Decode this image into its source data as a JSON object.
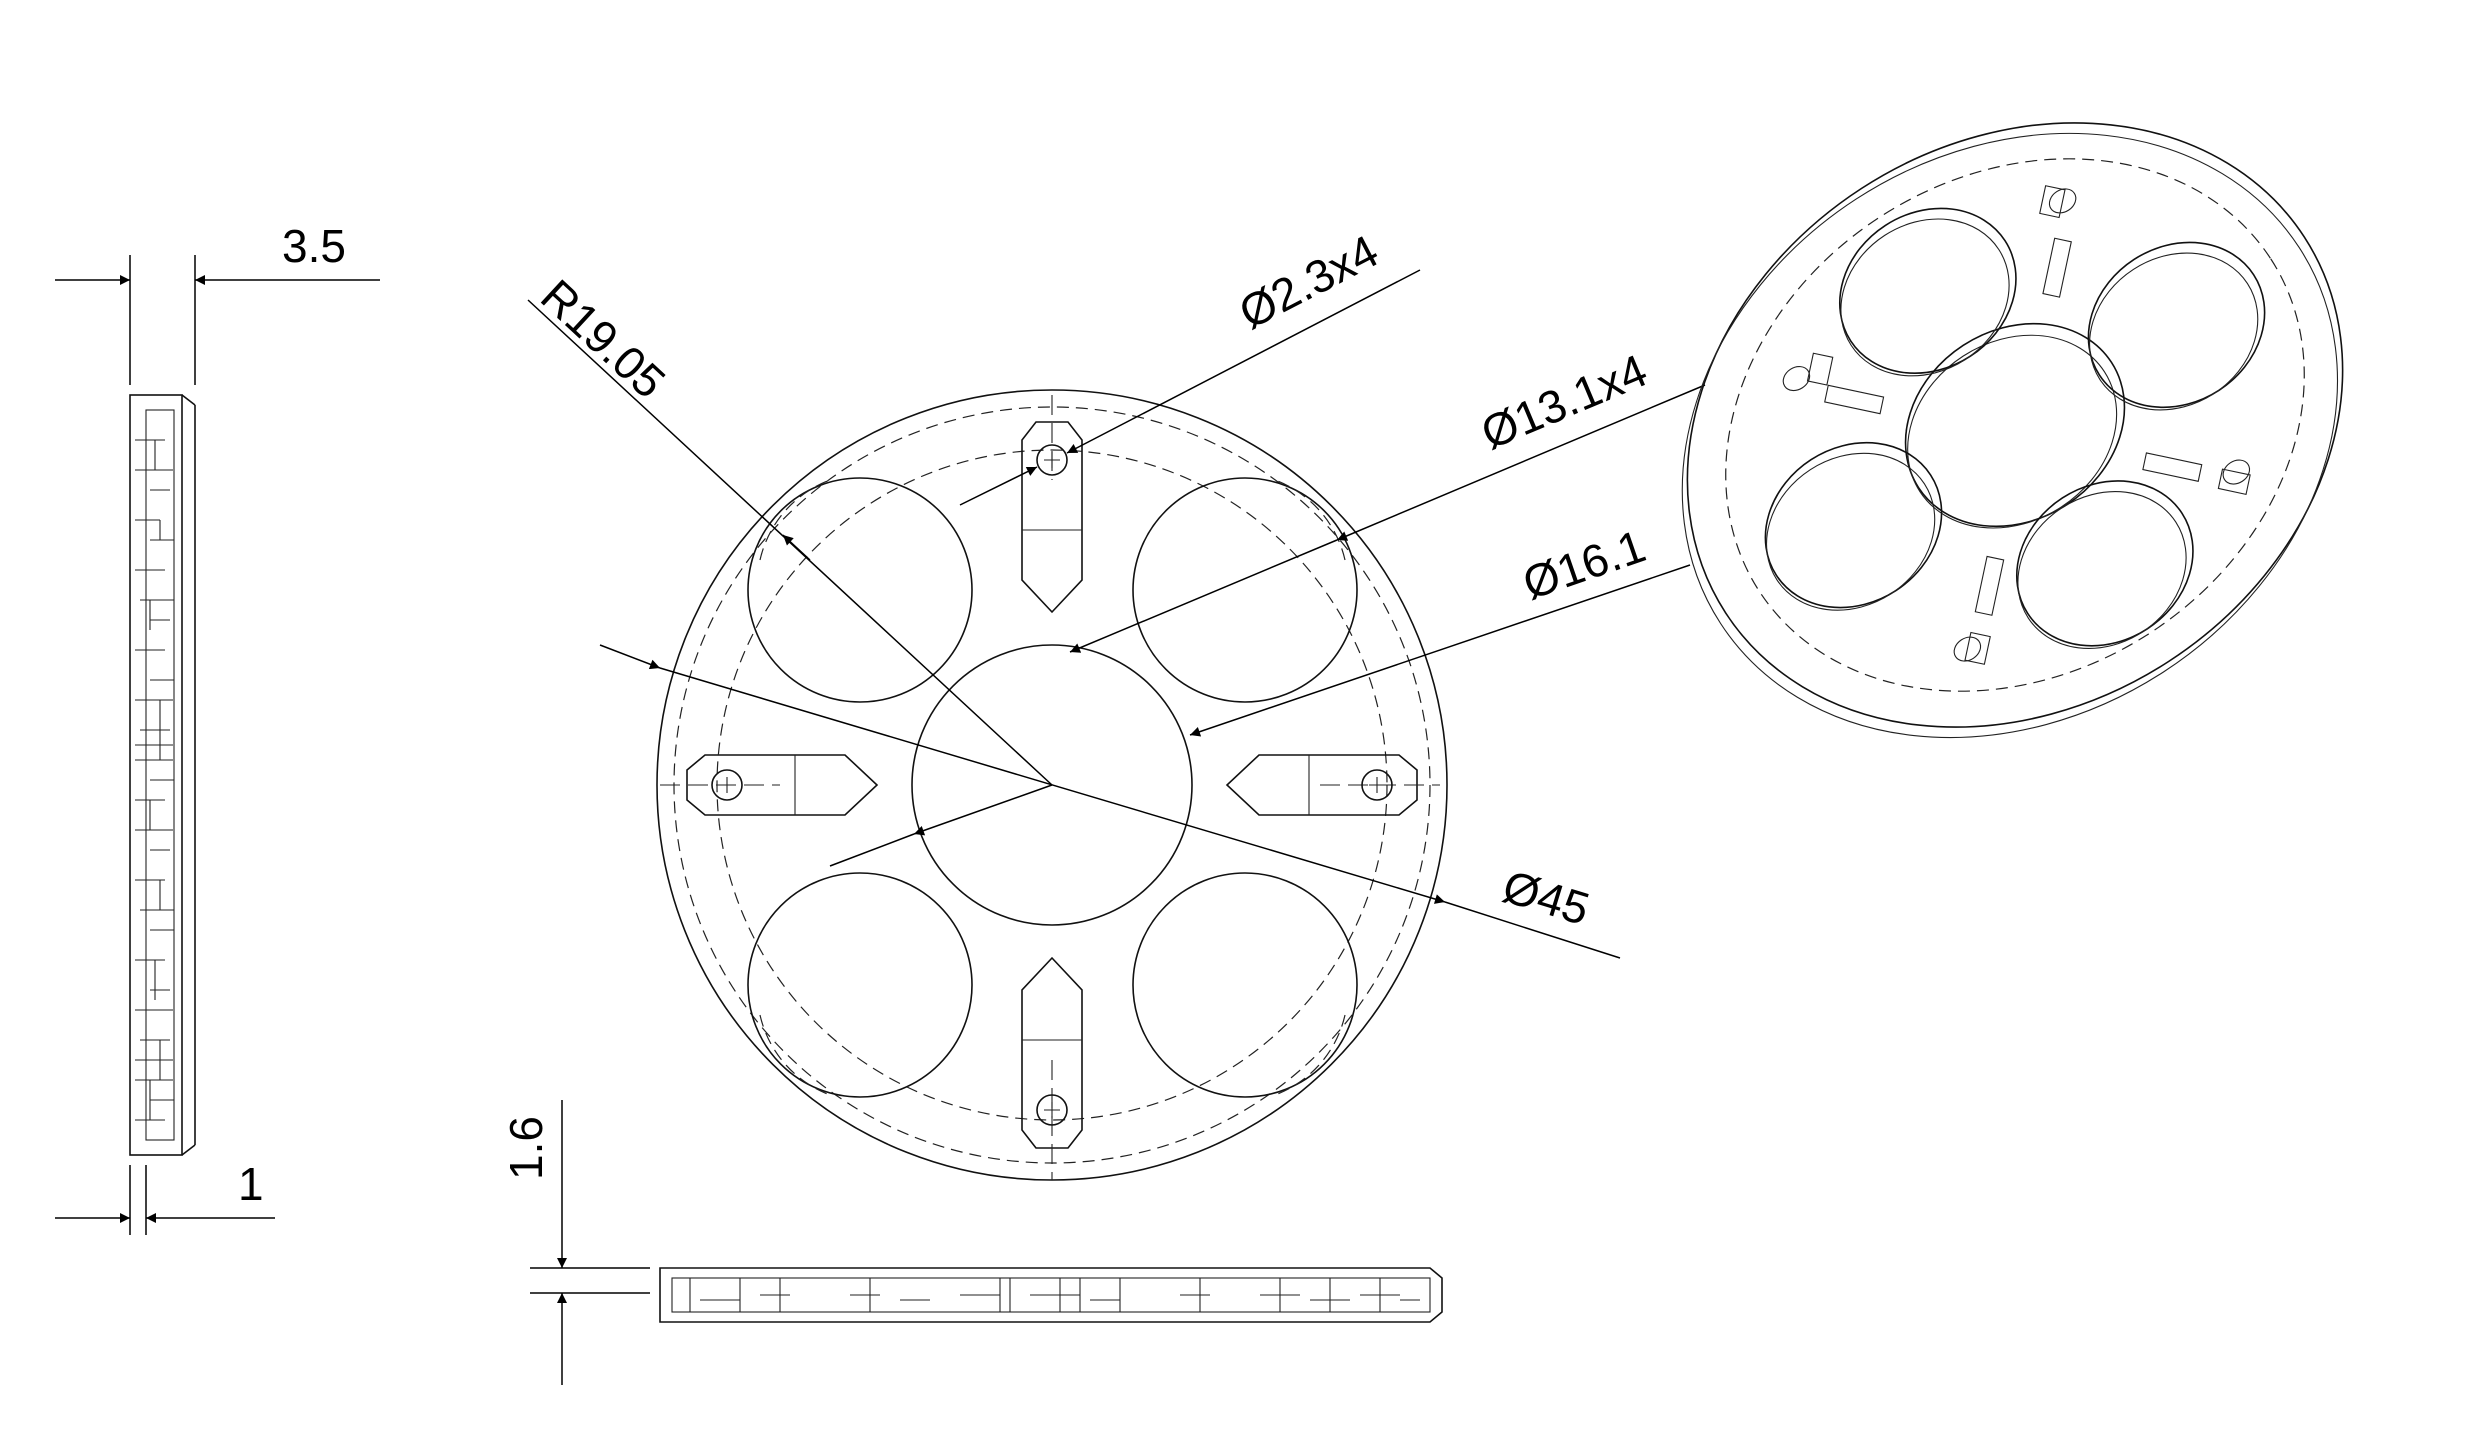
{
  "dimensions": {
    "side_thickness": "3.5",
    "side_lip": "1",
    "radius": "R19.05",
    "small_hole": "Ø2.3x4",
    "lens_hole": "Ø13.1x4",
    "center_hole": "Ø16.1",
    "outer_diameter": "Ø45",
    "plate_height": "1.6"
  },
  "icons": {
    "screw_hole": "circle-cross-icon",
    "led_lens_hole": "circle-hole-icon"
  },
  "colors": {
    "line": "#111111",
    "background": "#ffffff"
  }
}
